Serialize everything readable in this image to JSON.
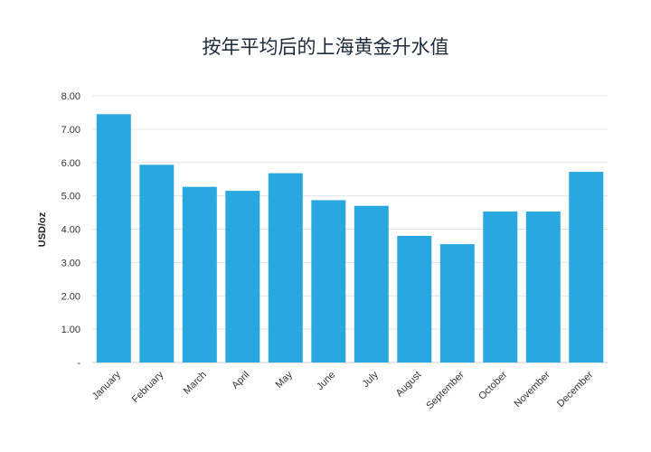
{
  "chart_data": {
    "type": "bar",
    "title": "按年平均后的上海黄金升水值",
    "xlabel": "",
    "ylabel": "USD/oz",
    "categories": [
      "January",
      "February",
      "March",
      "April",
      "May",
      "June",
      "July",
      "August",
      "September",
      "October",
      "November",
      "December"
    ],
    "values": [
      7.45,
      5.93,
      5.27,
      5.15,
      5.68,
      4.87,
      4.7,
      3.8,
      3.55,
      4.53,
      4.53,
      5.72
    ],
    "ylim": [
      0,
      8
    ],
    "yticks": [
      0,
      1,
      2,
      3,
      4,
      5,
      6,
      7,
      8
    ],
    "ytick_labels": [
      "-",
      "1.00",
      "2.00",
      "3.00",
      "4.00",
      "5.00",
      "6.00",
      "7.00",
      "8.00"
    ],
    "grid": true,
    "bar_color": "#29a8e0",
    "grid_color": "#e3e3e3"
  }
}
